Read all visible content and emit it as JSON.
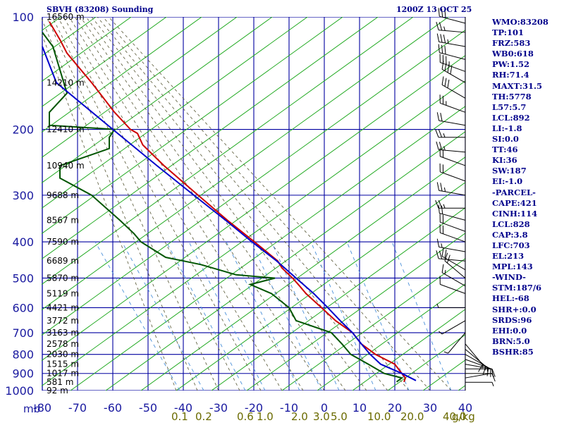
{
  "header": {
    "station": "SBVH (83208) Sounding",
    "time": "1200Z 13 OCT 25"
  },
  "axis": {
    "pressure_unit": "mb",
    "mixing_unit": "g/kg"
  },
  "indices": [
    "WMO:83208",
    "TP:101",
    "FRZ:583",
    "WB0:618",
    "PW:1.52",
    "RH:71.4",
    "MAXT:31.5",
    "TH:5778",
    "L57:5.7",
    "LCL:892",
    "LI:-1.8",
    "SI:0.0",
    "TT:46",
    "KI:36",
    "SW:187",
    "EI:-1.0",
    "-PARCEL-",
    "CAPE:421",
    "CINH:114",
    "LCL:828",
    "CAP:3.8",
    "LFC:703",
    "EL:213",
    "MPL:143",
    "-WIND-",
    "STM:187/6",
    "HEL:-68",
    "SHR+:0.0",
    "SRDS:96",
    "EHI:0.0",
    "BRN:5.0",
    "BSHR:85"
  ],
  "colors": {
    "grid": "#0000a0",
    "dry_adiabat": "#22aa22",
    "moist_adiabat": "#555533",
    "mixing_ratio": "#4a90d9",
    "temperature": "#cc0000",
    "dewpoint": "#005500",
    "parcel": "#0000cc",
    "barbs": "#000000"
  },
  "chart_data": {
    "type": "line",
    "chart_kind": "skew-T log-P sounding",
    "xlabel": "",
    "ylabel": "",
    "pressure_levels": [
      100,
      200,
      300,
      400,
      500,
      600,
      700,
      800,
      900,
      1000
    ],
    "pressure_labels": [
      "100",
      "200",
      "300",
      "400",
      "500",
      "600",
      "700",
      "800",
      "900",
      "1000"
    ],
    "temp_ticks": [
      -80,
      -70,
      -60,
      -50,
      -40,
      -30,
      -20,
      -10,
      0,
      10,
      20,
      30,
      40
    ],
    "temp_labels": [
      "-80",
      "-70",
      "-60",
      "-50",
      "-40",
      "-30",
      "-20",
      "-10",
      "0",
      "10",
      "20",
      "30",
      "40"
    ],
    "mixing_ratio_labels": [
      "0.1",
      "0.2",
      "0.6",
      "1.0",
      "2.0",
      "3.0",
      "5.0",
      "10.0",
      "20.0",
      "40.0"
    ],
    "mixing_ratio_values": [
      0.1,
      0.2,
      0.6,
      1.0,
      2.0,
      3.0,
      5.0,
      10.0,
      20.0,
      40.0
    ],
    "heights": [
      {
        "p": 100,
        "label": "16560 m"
      },
      {
        "p": 150,
        "label": "14210 m"
      },
      {
        "p": 200,
        "label": "12410 m"
      },
      {
        "p": 250,
        "label": "10940 m"
      },
      {
        "p": 300,
        "label": "9688 m"
      },
      {
        "p": 350,
        "label": "8567 m"
      },
      {
        "p": 400,
        "label": "7590 m"
      },
      {
        "p": 450,
        "label": "6689 m"
      },
      {
        "p": 500,
        "label": "5870 m"
      },
      {
        "p": 550,
        "label": "5119 m"
      },
      {
        "p": 600,
        "label": "4421 m"
      },
      {
        "p": 650,
        "label": "3772 m"
      },
      {
        "p": 700,
        "label": "3163 m"
      },
      {
        "p": 750,
        "label": "2578 m"
      },
      {
        "p": 800,
        "label": "2030 m"
      },
      {
        "p": 850,
        "label": "1515 m"
      },
      {
        "p": 900,
        "label": "1017 m"
      },
      {
        "p": 950,
        "label": "581 m"
      },
      {
        "p": 1000,
        "label": "92 m"
      }
    ],
    "series": [
      {
        "name": "Temperature",
        "points": [
          [
            948,
            22.6
          ],
          [
            925,
            23.0
          ],
          [
            900,
            22.0
          ],
          [
            850,
            20.0
          ],
          [
            800,
            14.5
          ],
          [
            750,
            10.5
          ],
          [
            700,
            8.0
          ],
          [
            650,
            3.2
          ],
          [
            600,
            -0.8
          ],
          [
            550,
            -5.2
          ],
          [
            525,
            -7.0
          ],
          [
            500,
            -9.0
          ],
          [
            470,
            -12.0
          ],
          [
            450,
            -13.2
          ],
          [
            400,
            -19.8
          ],
          [
            350,
            -27.5
          ],
          [
            300,
            -35.8
          ],
          [
            250,
            -45.5
          ],
          [
            220,
            -51.5
          ],
          [
            205,
            -53.0
          ],
          [
            200,
            -55.0
          ],
          [
            180,
            -59.5
          ],
          [
            150,
            -66.0
          ],
          [
            125,
            -73.0
          ],
          [
            115,
            -75.0
          ],
          [
            103,
            -78.0
          ]
        ]
      },
      {
        "name": "Dewpoint",
        "points": [
          [
            948,
            20.5
          ],
          [
            925,
            22.0
          ],
          [
            900,
            17.0
          ],
          [
            850,
            12.5
          ],
          [
            800,
            7.5
          ],
          [
            750,
            5.0
          ],
          [
            700,
            2.0
          ],
          [
            650,
            -8.0
          ],
          [
            600,
            -10.0
          ],
          [
            550,
            -15.0
          ],
          [
            520,
            -21.0
          ],
          [
            500,
            -14.0
          ],
          [
            490,
            -25.0
          ],
          [
            460,
            -35.0
          ],
          [
            440,
            -45.0
          ],
          [
            400,
            -52.0
          ],
          [
            380,
            -54.0
          ],
          [
            350,
            -58.0
          ],
          [
            300,
            -66.0
          ],
          [
            270,
            -75.0
          ],
          [
            250,
            -75.0
          ],
          [
            225,
            -61.0
          ],
          [
            210,
            -61.0
          ],
          [
            200,
            -59.5
          ],
          [
            195,
            -78.0
          ],
          [
            180,
            -78.0
          ],
          [
            160,
            -73.0
          ],
          [
            120,
            -77.0
          ],
          [
            110,
            -80.0
          ]
        ]
      },
      {
        "name": "Parcel",
        "points": [
          [
            940,
            26.0
          ],
          [
            900,
            22.0
          ],
          [
            850,
            16.0
          ],
          [
            800,
            13.0
          ],
          [
            750,
            10.5
          ],
          [
            700,
            8.0
          ],
          [
            650,
            4.5
          ],
          [
            600,
            1.0
          ],
          [
            550,
            -3.0
          ],
          [
            500,
            -8.0
          ],
          [
            450,
            -13.5
          ],
          [
            400,
            -20.5
          ],
          [
            350,
            -28.0
          ],
          [
            300,
            -37.0
          ],
          [
            250,
            -47.5
          ],
          [
            200,
            -60.0
          ],
          [
            150,
            -76.0
          ],
          [
            120,
            -80.0
          ]
        ]
      }
    ],
    "wind_barbs": [
      {
        "p": 104,
        "dir": 285,
        "kt": 30
      },
      {
        "p": 110,
        "dir": 275,
        "kt": 25
      },
      {
        "p": 120,
        "dir": 280,
        "kt": 35
      },
      {
        "p": 130,
        "dir": 285,
        "kt": 30
      },
      {
        "p": 140,
        "dir": 290,
        "kt": 35
      },
      {
        "p": 150,
        "dir": 300,
        "kt": 40
      },
      {
        "p": 165,
        "dir": 300,
        "kt": 30
      },
      {
        "p": 180,
        "dir": 290,
        "kt": 25
      },
      {
        "p": 195,
        "dir": 280,
        "kt": 20
      },
      {
        "p": 210,
        "dir": 270,
        "kt": 25
      },
      {
        "p": 230,
        "dir": 275,
        "kt": 25
      },
      {
        "p": 250,
        "dir": 290,
        "kt": 20
      },
      {
        "p": 275,
        "dir": 290,
        "kt": 20
      },
      {
        "p": 300,
        "dir": 280,
        "kt": 25
      },
      {
        "p": 325,
        "dir": 270,
        "kt": 25
      },
      {
        "p": 350,
        "dir": 285,
        "kt": 20
      },
      {
        "p": 375,
        "dir": 290,
        "kt": 20
      },
      {
        "p": 400,
        "dir": 290,
        "kt": 20
      },
      {
        "p": 425,
        "dir": 280,
        "kt": 15
      },
      {
        "p": 450,
        "dir": 275,
        "kt": 20
      },
      {
        "p": 475,
        "dir": 300,
        "kt": 20
      },
      {
        "p": 500,
        "dir": 310,
        "kt": 20
      },
      {
        "p": 525,
        "dir": 300,
        "kt": 15
      },
      {
        "p": 550,
        "dir": 290,
        "kt": 10
      },
      {
        "p": 600,
        "dir": 270,
        "kt": 5
      },
      {
        "p": 650,
        "dir": 240,
        "kt": 5
      },
      {
        "p": 700,
        "dir": 220,
        "kt": 5
      },
      {
        "p": 750,
        "dir": 140,
        "kt": 10
      },
      {
        "p": 775,
        "dir": 130,
        "kt": 15
      },
      {
        "p": 800,
        "dir": 120,
        "kt": 15
      },
      {
        "p": 825,
        "dir": 110,
        "kt": 15
      },
      {
        "p": 850,
        "dir": 100,
        "kt": 10
      },
      {
        "p": 875,
        "dir": 90,
        "kt": 10
      },
      {
        "p": 900,
        "dir": 90,
        "kt": 10
      },
      {
        "p": 925,
        "dir": 80,
        "kt": 5
      },
      {
        "p": 950,
        "dir": 90,
        "kt": 5
      }
    ]
  }
}
